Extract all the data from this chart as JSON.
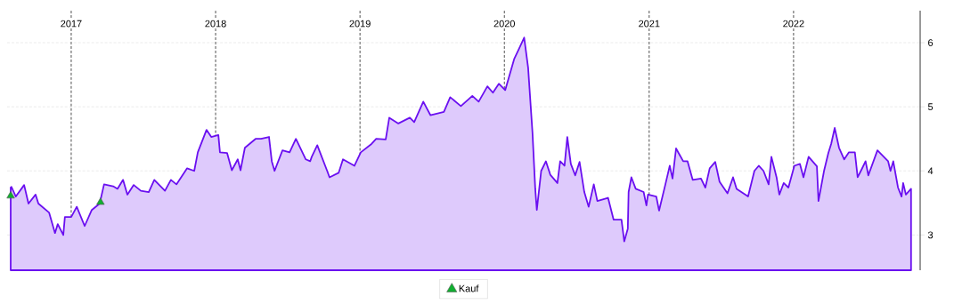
{
  "chart_data": {
    "type": "area",
    "xlim": [
      "2016-07-23",
      "2022-11-17"
    ],
    "ylim": [
      2.45,
      6.5
    ],
    "yticks": [
      3,
      4,
      5,
      6
    ],
    "xticks": [
      {
        "value": "2017-01-01",
        "label": "2017"
      },
      {
        "value": "2018-01-01",
        "label": "2018"
      },
      {
        "value": "2019-01-01",
        "label": "2019"
      },
      {
        "value": "2020-01-01",
        "label": "2020"
      },
      {
        "value": "2021-01-01",
        "label": "2021"
      },
      {
        "value": "2022-01-01",
        "label": "2022"
      }
    ],
    "grid": true,
    "legend": "bottom",
    "series": [
      {
        "color": "#6a0ff0",
        "x": [
          "2016-08-01",
          "2016-08-03",
          "2016-08-14",
          "2016-09-04",
          "2016-09-15",
          "2016-10-03",
          "2016-10-10",
          "2016-11-06",
          "2016-11-21",
          "2016-11-28",
          "2016-12-12",
          "2016-12-16",
          "2017-01-01",
          "2017-01-15",
          "2017-02-04",
          "2017-02-22",
          "2017-03-14",
          "2017-03-25",
          "2017-04-17",
          "2017-04-28",
          "2017-05-12",
          "2017-05-23",
          "2017-06-08",
          "2017-06-26",
          "2017-07-16",
          "2017-07-30",
          "2017-08-26",
          "2017-09-10",
          "2017-09-24",
          "2017-10-21",
          "2017-11-08",
          "2017-11-17",
          "2017-12-09",
          "2017-12-21",
          "2018-01-08",
          "2018-01-12",
          "2018-01-30",
          "2018-02-11",
          "2018-02-26",
          "2018-03-05",
          "2018-03-16",
          "2018-04-12",
          "2018-04-26",
          "2018-05-16",
          "2018-05-23",
          "2018-05-30",
          "2018-06-19",
          "2018-07-07",
          "2018-07-23",
          "2018-08-17",
          "2018-08-28",
          "2018-09-01",
          "2018-09-15",
          "2018-10-10",
          "2018-10-16",
          "2018-11-08",
          "2018-11-19",
          "2018-12-18",
          "2019-01-03",
          "2019-01-30",
          "2019-02-11",
          "2019-03-07",
          "2019-03-16",
          "2019-04-08",
          "2019-05-07",
          "2019-05-18",
          "2019-06-10",
          "2019-06-28",
          "2019-08-01",
          "2019-08-17",
          "2019-09-13",
          "2019-10-12",
          "2019-10-28",
          "2019-11-19",
          "2019-12-03",
          "2019-12-18",
          "2020-01-03",
          "2020-01-26",
          "2020-02-08",
          "2020-02-20",
          "2020-03-01",
          "2020-03-12",
          "2020-03-19",
          "2020-03-23",
          "2020-04-03",
          "2020-04-15",
          "2020-04-26",
          "2020-05-14",
          "2020-05-21",
          "2020-06-01",
          "2020-06-08",
          "2020-06-17",
          "2020-06-28",
          "2020-07-09",
          "2020-07-21",
          "2020-08-01",
          "2020-08-14",
          "2020-08-23",
          "2020-09-19",
          "2020-10-03",
          "2020-10-23",
          "2020-10-30",
          "2020-11-08",
          "2020-11-10",
          "2020-11-17",
          "2020-11-28",
          "2020-12-18",
          "2020-12-25",
          "2020-12-29",
          "2021-01-19",
          "2021-01-26",
          "2021-02-11",
          "2021-02-22",
          "2021-03-01",
          "2021-03-10",
          "2021-03-28",
          "2021-04-08",
          "2021-04-21",
          "2021-05-12",
          "2021-05-23",
          "2021-06-03",
          "2021-06-17",
          "2021-06-28",
          "2021-07-18",
          "2021-08-01",
          "2021-08-10",
          "2021-09-08",
          "2021-09-24",
          "2021-10-05",
          "2021-10-17",
          "2021-10-30",
          "2021-11-06",
          "2021-11-19",
          "2021-11-26",
          "2021-12-07",
          "2021-12-19",
          "2022-01-03",
          "2022-01-17",
          "2022-01-26",
          "2022-02-08",
          "2022-03-01",
          "2022-03-05",
          "2022-03-19",
          "2022-03-30",
          "2022-04-06",
          "2022-04-15",
          "2022-04-26",
          "2022-05-09",
          "2022-05-21",
          "2022-06-05",
          "2022-06-12",
          "2022-06-21",
          "2022-07-02",
          "2022-07-09",
          "2022-08-01",
          "2022-08-28",
          "2022-09-03",
          "2022-09-10",
          "2022-09-22",
          "2022-10-01",
          "2022-10-05",
          "2022-10-12",
          "2022-10-25"
        ],
        "values": [
          3.74,
          3.75,
          3.6,
          3.78,
          3.49,
          3.63,
          3.49,
          3.35,
          3.03,
          3.17,
          3.0,
          3.28,
          3.28,
          3.44,
          3.14,
          3.39,
          3.49,
          3.79,
          3.76,
          3.72,
          3.86,
          3.63,
          3.78,
          3.69,
          3.67,
          3.86,
          3.69,
          3.86,
          3.79,
          4.04,
          4.0,
          4.29,
          4.64,
          4.53,
          4.56,
          4.29,
          4.28,
          4.01,
          4.18,
          4.01,
          4.36,
          4.5,
          4.5,
          4.53,
          4.15,
          4.0,
          4.32,
          4.29,
          4.5,
          4.18,
          4.15,
          4.22,
          4.4,
          4.0,
          3.9,
          3.97,
          4.18,
          4.08,
          4.29,
          4.42,
          4.5,
          4.49,
          4.83,
          4.74,
          4.83,
          4.76,
          5.08,
          4.87,
          4.92,
          5.15,
          5.01,
          5.17,
          5.08,
          5.32,
          5.22,
          5.36,
          5.26,
          5.75,
          5.92,
          6.08,
          5.61,
          4.6,
          3.72,
          3.39,
          4.0,
          4.15,
          3.94,
          3.81,
          4.15,
          4.08,
          4.53,
          4.11,
          3.93,
          4.14,
          3.67,
          3.44,
          3.79,
          3.53,
          3.58,
          3.24,
          3.24,
          2.9,
          3.1,
          3.67,
          3.9,
          3.72,
          3.67,
          3.46,
          3.63,
          3.6,
          3.38,
          3.79,
          4.08,
          3.88,
          4.35,
          4.15,
          4.15,
          3.86,
          3.88,
          3.74,
          4.04,
          4.14,
          3.83,
          3.65,
          3.9,
          3.72,
          3.6,
          4.0,
          4.08,
          4.0,
          3.79,
          4.22,
          3.9,
          3.63,
          3.81,
          3.74,
          4.08,
          4.11,
          3.9,
          4.22,
          4.07,
          3.53,
          4.0,
          4.28,
          4.42,
          4.67,
          4.36,
          4.18,
          4.29,
          4.29,
          3.9,
          4.01,
          4.15,
          3.93,
          4.32,
          4.15,
          4.0,
          4.15,
          3.74,
          3.6,
          3.81,
          3.63,
          3.72
        ]
      },
      {
        "type": "scatter",
        "name": "Kauf",
        "color": "#10b030",
        "marker": "triangle",
        "x": [
          "2016-08-01",
          "2017-03-16"
        ],
        "values": [
          3.61,
          3.51
        ]
      }
    ]
  }
}
